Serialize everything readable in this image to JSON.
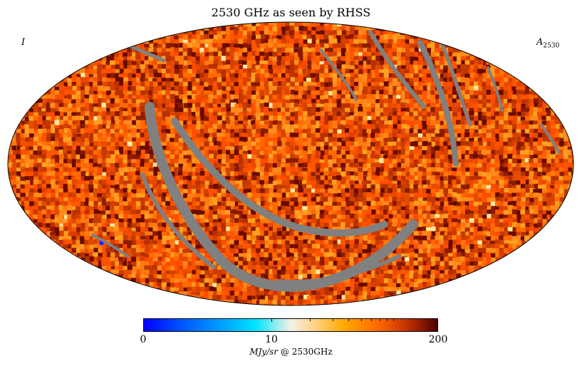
{
  "title": "2530 GHz as seen by RHSS",
  "corner_left": "I",
  "corner_right_base": "A",
  "corner_right_sub": "2530",
  "colors": {
    "masked": "#808080",
    "base": "#ff5a0a",
    "outline": "#000000"
  },
  "colorbar": {
    "min_label": "0",
    "mid_label": "10",
    "max_label": "200",
    "unit_italic": "MJy/sr",
    "unit_rest": " @ 2530GHz",
    "colormap": [
      "#0000ff",
      "#00e4ff",
      "#f5f1e6",
      "#ffaa00",
      "#ff6600",
      "#4a0000"
    ],
    "scale": "log"
  }
}
